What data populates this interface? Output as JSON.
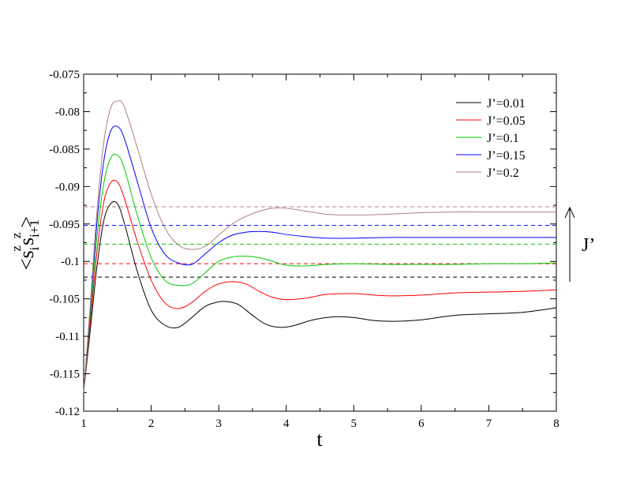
{
  "chart_data": {
    "type": "line",
    "title": "",
    "xlabel": "t",
    "ylabel": {
      "prefix": "<s",
      "sub1": "i",
      "sup1": "z",
      "mid": "s",
      "sub2": "i+1",
      "sup2": "z",
      "suffix": ">"
    },
    "xlim": [
      1,
      8
    ],
    "ylim": [
      -0.12,
      -0.075
    ],
    "xticks": [
      1,
      2,
      3,
      4,
      5,
      6,
      7,
      8
    ],
    "xtick_labels": [
      "1",
      "2",
      "3",
      "4",
      "5",
      "6",
      "7",
      "8"
    ],
    "yticks": [
      -0.12,
      -0.115,
      -0.11,
      -0.105,
      -0.1,
      -0.095,
      -0.09,
      -0.085,
      -0.08,
      -0.075
    ],
    "ytick_labels": [
      "-0.12",
      "-0.115",
      "-0.11",
      "-0.105",
      "-0.1",
      "-0.095",
      "-0.09",
      "-0.085",
      "-0.08",
      "-0.075"
    ],
    "grid": false,
    "legend_position": "top-right",
    "arrow_label": "J’",
    "series": [
      {
        "name": "J’=0.01",
        "color": "#000000",
        "asymptote": -0.1021,
        "points": [
          [
            1.0,
            -0.1175
          ],
          [
            1.1,
            -0.109
          ],
          [
            1.2,
            -0.1005
          ],
          [
            1.3,
            -0.0945
          ],
          [
            1.4,
            -0.0923
          ],
          [
            1.5,
            -0.0923
          ],
          [
            1.6,
            -0.0948
          ],
          [
            1.8,
            -0.1015
          ],
          [
            2.0,
            -0.1065
          ],
          [
            2.2,
            -0.1085
          ],
          [
            2.4,
            -0.1088
          ],
          [
            2.6,
            -0.1075
          ],
          [
            2.8,
            -0.106
          ],
          [
            3.0,
            -0.1054
          ],
          [
            3.15,
            -0.1054
          ],
          [
            3.3,
            -0.1058
          ],
          [
            3.5,
            -0.1072
          ],
          [
            3.7,
            -0.1084
          ],
          [
            3.9,
            -0.1088
          ],
          [
            4.1,
            -0.1086
          ],
          [
            4.4,
            -0.1078
          ],
          [
            4.7,
            -0.1074
          ],
          [
            5.0,
            -0.1075
          ],
          [
            5.3,
            -0.1079
          ],
          [
            5.6,
            -0.108
          ],
          [
            6.0,
            -0.1078
          ],
          [
            6.5,
            -0.1072
          ],
          [
            7.0,
            -0.107
          ],
          [
            7.5,
            -0.1068
          ],
          [
            8.0,
            -0.1062
          ]
        ]
      },
      {
        "name": "J’=0.05",
        "color": "#ff0000",
        "asymptote": -0.1003,
        "points": [
          [
            1.0,
            -0.1175
          ],
          [
            1.1,
            -0.108
          ],
          [
            1.2,
            -0.0985
          ],
          [
            1.3,
            -0.092
          ],
          [
            1.4,
            -0.0895
          ],
          [
            1.5,
            -0.0894
          ],
          [
            1.6,
            -0.0915
          ],
          [
            1.8,
            -0.0975
          ],
          [
            2.0,
            -0.1025
          ],
          [
            2.2,
            -0.1055
          ],
          [
            2.4,
            -0.1063
          ],
          [
            2.6,
            -0.1055
          ],
          [
            2.8,
            -0.104
          ],
          [
            3.0,
            -0.103
          ],
          [
            3.2,
            -0.1027
          ],
          [
            3.4,
            -0.103
          ],
          [
            3.6,
            -0.104
          ],
          [
            3.8,
            -0.1048
          ],
          [
            4.0,
            -0.1051
          ],
          [
            4.3,
            -0.1049
          ],
          [
            4.6,
            -0.1044
          ],
          [
            5.0,
            -0.1043
          ],
          [
            5.3,
            -0.1045
          ],
          [
            5.6,
            -0.1046
          ],
          [
            6.0,
            -0.1045
          ],
          [
            6.5,
            -0.1042
          ],
          [
            7.0,
            -0.1041
          ],
          [
            7.5,
            -0.104
          ],
          [
            8.0,
            -0.1038
          ]
        ]
      },
      {
        "name": "J’=0.1",
        "color": "#00cc00",
        "asymptote": -0.0977,
        "points": [
          [
            1.0,
            -0.1175
          ],
          [
            1.1,
            -0.107
          ],
          [
            1.2,
            -0.0965
          ],
          [
            1.3,
            -0.0895
          ],
          [
            1.4,
            -0.0862
          ],
          [
            1.5,
            -0.0858
          ],
          [
            1.6,
            -0.0875
          ],
          [
            1.8,
            -0.094
          ],
          [
            2.0,
            -0.0995
          ],
          [
            2.2,
            -0.1025
          ],
          [
            2.4,
            -0.1032
          ],
          [
            2.6,
            -0.103
          ],
          [
            2.8,
            -0.1015
          ],
          [
            3.0,
            -0.1
          ],
          [
            3.2,
            -0.0994
          ],
          [
            3.4,
            -0.0993
          ],
          [
            3.6,
            -0.0995
          ],
          [
            3.8,
            -0.1
          ],
          [
            4.0,
            -0.1005
          ],
          [
            4.3,
            -0.1006
          ],
          [
            4.6,
            -0.1004
          ],
          [
            5.0,
            -0.1003
          ],
          [
            5.5,
            -0.1004
          ],
          [
            6.0,
            -0.1004
          ],
          [
            6.5,
            -0.1004
          ],
          [
            7.0,
            -0.1003
          ],
          [
            7.5,
            -0.1003
          ],
          [
            8.0,
            -0.1002
          ]
        ]
      },
      {
        "name": "J’=0.15",
        "color": "#0000ff",
        "asymptote": -0.0952,
        "points": [
          [
            1.0,
            -0.1175
          ],
          [
            1.1,
            -0.106
          ],
          [
            1.2,
            -0.0945
          ],
          [
            1.3,
            -0.0865
          ],
          [
            1.4,
            -0.0826
          ],
          [
            1.5,
            -0.082
          ],
          [
            1.6,
            -0.0835
          ],
          [
            1.8,
            -0.0895
          ],
          [
            2.0,
            -0.0955
          ],
          [
            2.2,
            -0.099
          ],
          [
            2.4,
            -0.1002
          ],
          [
            2.6,
            -0.1004
          ],
          [
            2.8,
            -0.099
          ],
          [
            3.0,
            -0.0975
          ],
          [
            3.2,
            -0.0965
          ],
          [
            3.4,
            -0.0961
          ],
          [
            3.6,
            -0.096
          ],
          [
            3.8,
            -0.0961
          ],
          [
            4.0,
            -0.0964
          ],
          [
            4.3,
            -0.0967
          ],
          [
            4.6,
            -0.0969
          ],
          [
            5.0,
            -0.0969
          ],
          [
            5.5,
            -0.0968
          ],
          [
            6.0,
            -0.0968
          ],
          [
            6.5,
            -0.0968
          ],
          [
            7.0,
            -0.0968
          ],
          [
            7.5,
            -0.0968
          ],
          [
            8.0,
            -0.0968
          ]
        ]
      },
      {
        "name": "J’=0.2",
        "color": "#b08080",
        "asymptote": -0.0927,
        "points": [
          [
            1.0,
            -0.1175
          ],
          [
            1.1,
            -0.1055
          ],
          [
            1.2,
            -0.093
          ],
          [
            1.3,
            -0.084
          ],
          [
            1.4,
            -0.0795
          ],
          [
            1.5,
            -0.0786
          ],
          [
            1.6,
            -0.0793
          ],
          [
            1.8,
            -0.085
          ],
          [
            2.0,
            -0.091
          ],
          [
            2.2,
            -0.0955
          ],
          [
            2.4,
            -0.0978
          ],
          [
            2.6,
            -0.0984
          ],
          [
            2.8,
            -0.098
          ],
          [
            3.0,
            -0.0965
          ],
          [
            3.2,
            -0.095
          ],
          [
            3.4,
            -0.094
          ],
          [
            3.6,
            -0.0933
          ],
          [
            3.8,
            -0.0929
          ],
          [
            4.0,
            -0.0929
          ],
          [
            4.3,
            -0.0933
          ],
          [
            4.6,
            -0.0937
          ],
          [
            5.0,
            -0.0938
          ],
          [
            5.5,
            -0.0937
          ],
          [
            6.0,
            -0.0935
          ],
          [
            6.5,
            -0.0934
          ],
          [
            7.0,
            -0.0934
          ],
          [
            7.5,
            -0.0934
          ],
          [
            8.0,
            -0.0934
          ]
        ]
      }
    ]
  }
}
